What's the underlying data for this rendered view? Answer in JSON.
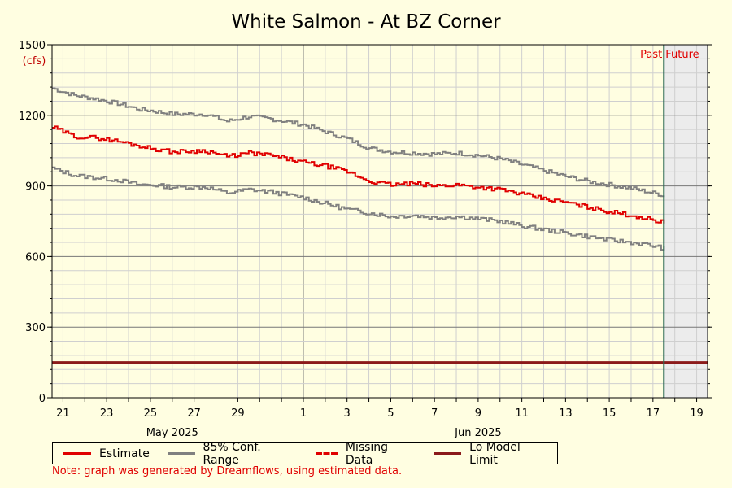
{
  "chart_data": {
    "type": "line",
    "title": "White Salmon - At BZ Corner",
    "y_unit_label": "(cfs)",
    "ylim": [
      0,
      1500
    ],
    "y_ticks": [
      0,
      300,
      600,
      900,
      1200,
      1500
    ],
    "x_range": [
      "2025-05-20 12:00",
      "2025-06-19 12:00"
    ],
    "x_tick_labels": [
      "21",
      "23",
      "25",
      "27",
      "29",
      "1",
      "3",
      "5",
      "7",
      "9",
      "11",
      "13",
      "15",
      "17",
      "19"
    ],
    "x_tick_dates": [
      "2025-05-21",
      "2025-05-23",
      "2025-05-25",
      "2025-05-27",
      "2025-05-29",
      "2025-06-01",
      "2025-06-03",
      "2025-06-05",
      "2025-06-07",
      "2025-06-09",
      "2025-06-11",
      "2025-06-13",
      "2025-06-15",
      "2025-06-17",
      "2025-06-19"
    ],
    "month_labels": [
      {
        "label": "May 2025",
        "date": "2025-05-26"
      },
      {
        "label": "Jun 2025",
        "date": "2025-06-09"
      }
    ],
    "now_marker": {
      "date": "2025-06-17 12:00",
      "label_past": "Past",
      "label_future": "Future"
    },
    "lo_model_limit": 150,
    "series": [
      {
        "name": "Estimate",
        "color": "#e00000",
        "x": [
          "2025-05-20 12:00",
          "2025-05-21 12:00",
          "2025-05-22 12:00",
          "2025-05-23 12:00",
          "2025-05-24 12:00",
          "2025-05-25 00:00",
          "2025-05-26 00:00",
          "2025-05-27 12:00",
          "2025-05-28 12:00",
          "2025-05-29 12:00",
          "2025-05-30 12:00",
          "2025-06-01 00:00",
          "2025-06-02 00:00",
          "2025-06-03 00:00",
          "2025-06-04 00:00",
          "2025-06-05 00:00",
          "2025-06-06 00:00",
          "2025-06-07 00:00",
          "2025-06-08 00:00",
          "2025-06-09 00:00",
          "2025-06-10 00:00",
          "2025-06-11 00:00",
          "2025-06-12 00:00",
          "2025-06-13 00:00",
          "2025-06-14 00:00",
          "2025-06-15 00:00",
          "2025-06-16 00:00",
          "2025-06-17 00:00",
          "2025-06-17 12:00"
        ],
        "y": [
          1150,
          1110,
          1105,
          1090,
          1070,
          1060,
          1045,
          1050,
          1025,
          1040,
          1030,
          1000,
          985,
          960,
          920,
          905,
          910,
          900,
          905,
          895,
          885,
          865,
          845,
          830,
          810,
          790,
          775,
          755,
          745
        ]
      },
      {
        "name": "85% Conf. Range",
        "color": "#808080",
        "x": [
          "2025-05-20 12:00",
          "2025-05-21 12:00",
          "2025-05-22 12:00",
          "2025-05-23 12:00",
          "2025-05-24 12:00",
          "2025-05-25 00:00",
          "2025-05-26 00:00",
          "2025-05-27 12:00",
          "2025-05-28 12:00",
          "2025-05-29 12:00",
          "2025-05-30 12:00",
          "2025-06-01 00:00",
          "2025-06-02 00:00",
          "2025-06-03 00:00",
          "2025-06-04 00:00",
          "2025-06-05 00:00",
          "2025-06-06 00:00",
          "2025-06-07 00:00",
          "2025-06-08 00:00",
          "2025-06-09 00:00",
          "2025-06-10 00:00",
          "2025-06-11 00:00",
          "2025-06-12 00:00",
          "2025-06-13 00:00",
          "2025-06-14 00:00",
          "2025-06-15 00:00",
          "2025-06-16 00:00",
          "2025-06-17 00:00",
          "2025-06-17 12:00"
        ],
        "upper": [
          1315,
          1285,
          1270,
          1250,
          1225,
          1220,
          1205,
          1205,
          1175,
          1195,
          1185,
          1160,
          1130,
          1100,
          1060,
          1045,
          1040,
          1035,
          1040,
          1030,
          1015,
          990,
          965,
          940,
          920,
          905,
          890,
          870,
          860
        ],
        "lower": [
          975,
          945,
          935,
          925,
          905,
          905,
          895,
          895,
          870,
          885,
          875,
          850,
          825,
          800,
          785,
          770,
          775,
          765,
          770,
          760,
          750,
          730,
          715,
          700,
          685,
          670,
          660,
          645,
          635
        ]
      }
    ],
    "legend": [
      {
        "label": "Estimate",
        "color": "#e00000",
        "style": "solid"
      },
      {
        "label": "85% Conf. Range",
        "color": "#808080",
        "style": "solid"
      },
      {
        "label": "Missing Data",
        "color": "#e00000",
        "style": "dashed"
      },
      {
        "label": "Lo Model Limit",
        "color": "#8b1a1a",
        "style": "solid"
      }
    ],
    "grid": true
  },
  "note": "Note: graph was generated by Dreamflows, using estimated data."
}
